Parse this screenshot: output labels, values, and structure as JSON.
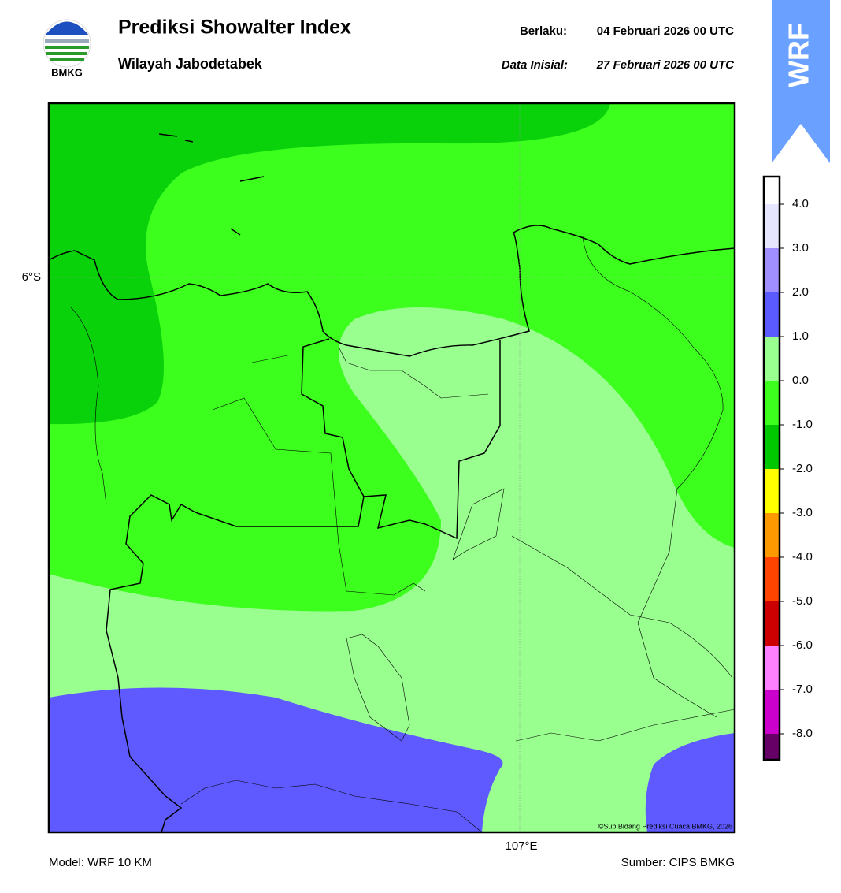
{
  "header": {
    "logo_text": "BMKG",
    "title": "Prediksi Showalter Index",
    "subtitle": "Wilayah Jabodetabek",
    "valid_label": "Berlaku:",
    "valid_date": "04 Februari 2026 00 UTC",
    "init_label": "Data Inisial:",
    "init_date": "27 Februari 2026 00 UTC",
    "badge": "WRF"
  },
  "map": {
    "lat_label": "6°S",
    "lon_label": "107°E",
    "credit": "©Sub Bidang Prediksi Cuaca BMKG, 2026"
  },
  "colorbar": {
    "labels": [
      "4.0",
      "3.0",
      "2.0",
      "1.0",
      "0.0",
      "-1.0",
      "-2.0",
      "-3.0",
      "-4.0",
      "-5.0",
      "-6.0",
      "-7.0",
      "-8.0"
    ],
    "colors": [
      "#ffffff",
      "#e6e6ff",
      "#9f8fff",
      "#5a5aff",
      "#99ff8f",
      "#3cff1e",
      "#00c800",
      "#ffff00",
      "#ff9900",
      "#ff4400",
      "#cc0000",
      "#ff80ff",
      "#cc00cc",
      "#660066"
    ]
  },
  "footer": {
    "model": "Model: WRF 10 KM",
    "source": "Sumber: CIPS BMKG"
  }
}
